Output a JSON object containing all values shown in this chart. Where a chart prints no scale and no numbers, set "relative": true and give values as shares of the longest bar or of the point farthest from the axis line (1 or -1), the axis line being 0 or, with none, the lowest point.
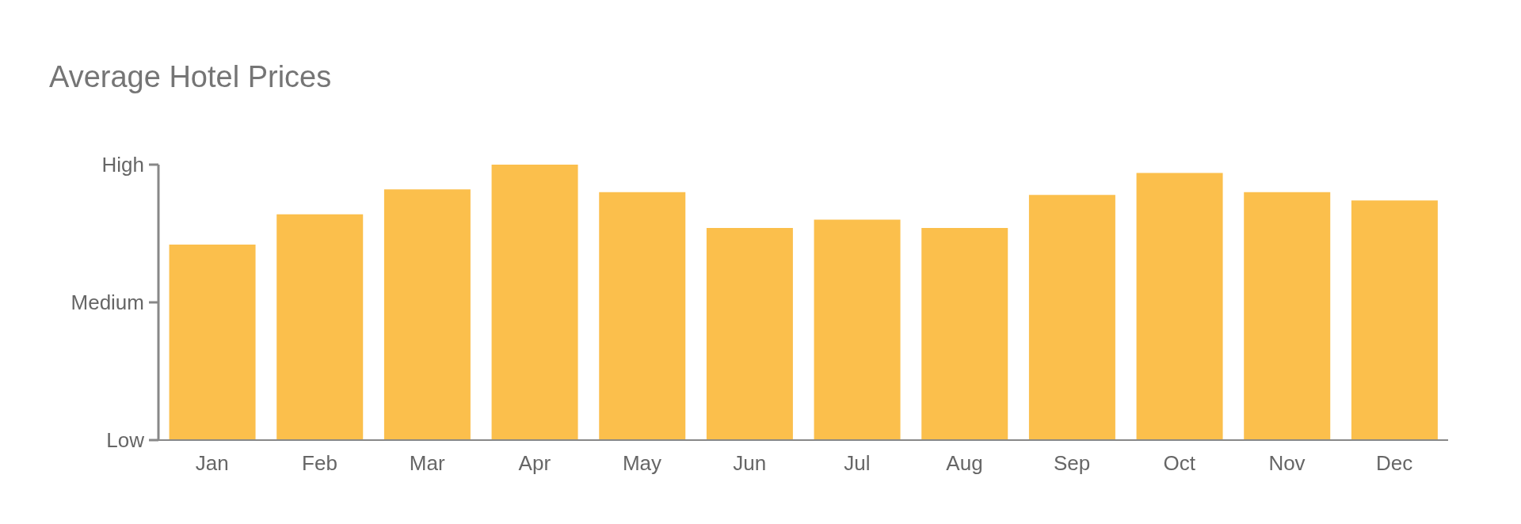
{
  "chart_data": {
    "type": "bar",
    "title": "Average Hotel Prices",
    "categories": [
      "Jan",
      "Feb",
      "Mar",
      "Apr",
      "May",
      "Jun",
      "Jul",
      "Aug",
      "Sep",
      "Oct",
      "Nov",
      "Dec"
    ],
    "values": [
      0.71,
      0.82,
      0.91,
      1.0,
      0.9,
      0.77,
      0.8,
      0.77,
      0.89,
      0.97,
      0.9,
      0.87
    ],
    "color": "#fbbf4c",
    "relative": true,
    "annotations": [
      "High",
      "Medium",
      "Low"
    ]
  }
}
